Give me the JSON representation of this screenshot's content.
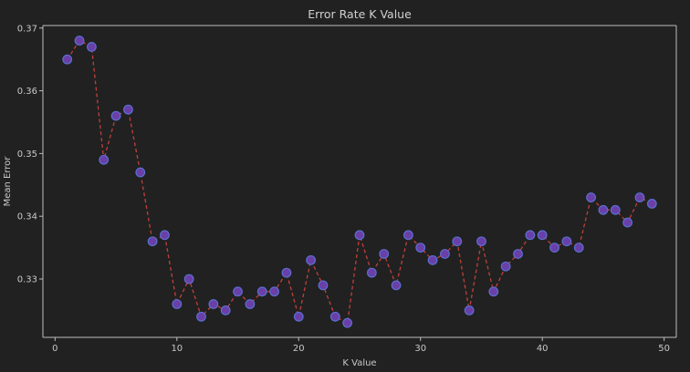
{
  "chart_data": {
    "type": "line",
    "title": "Error Rate K Value",
    "xlabel": "K Value",
    "ylabel": "Mean Error",
    "xlim": [
      -1,
      51
    ],
    "ylim": [
      0.3207,
      0.3704
    ],
    "xticks": [
      0,
      10,
      20,
      30,
      40,
      50
    ],
    "yticks": [
      0.33,
      0.34,
      0.35,
      0.36,
      0.37
    ],
    "ytick_labels": [
      "0.33",
      "0.34",
      "0.35",
      "0.36",
      "0.37"
    ],
    "grid": false,
    "line_style": "dashed",
    "line_color": "#c0403a",
    "marker_face_color": "#6a3fa8",
    "marker_edge_color": "#5a6fd0",
    "x": [
      1,
      2,
      3,
      4,
      5,
      6,
      7,
      8,
      9,
      10,
      11,
      12,
      13,
      14,
      15,
      16,
      17,
      18,
      19,
      20,
      21,
      22,
      23,
      24,
      25,
      26,
      27,
      28,
      29,
      30,
      31,
      32,
      33,
      34,
      35,
      36,
      37,
      38,
      39,
      40,
      41,
      42,
      43,
      44,
      45,
      46,
      47,
      48,
      49
    ],
    "values": [
      0.365,
      0.368,
      0.367,
      0.349,
      0.356,
      0.357,
      0.347,
      0.336,
      0.337,
      0.326,
      0.33,
      0.324,
      0.326,
      0.325,
      0.328,
      0.326,
      0.328,
      0.328,
      0.331,
      0.324,
      0.333,
      0.329,
      0.324,
      0.323,
      0.337,
      0.331,
      0.334,
      0.329,
      0.337,
      0.335,
      0.333,
      0.334,
      0.336,
      0.325,
      0.336,
      0.328,
      0.332,
      0.334,
      0.337,
      0.337,
      0.335,
      0.336,
      0.335,
      0.343,
      0.341,
      0.341,
      0.339,
      0.343,
      0.342
    ]
  }
}
